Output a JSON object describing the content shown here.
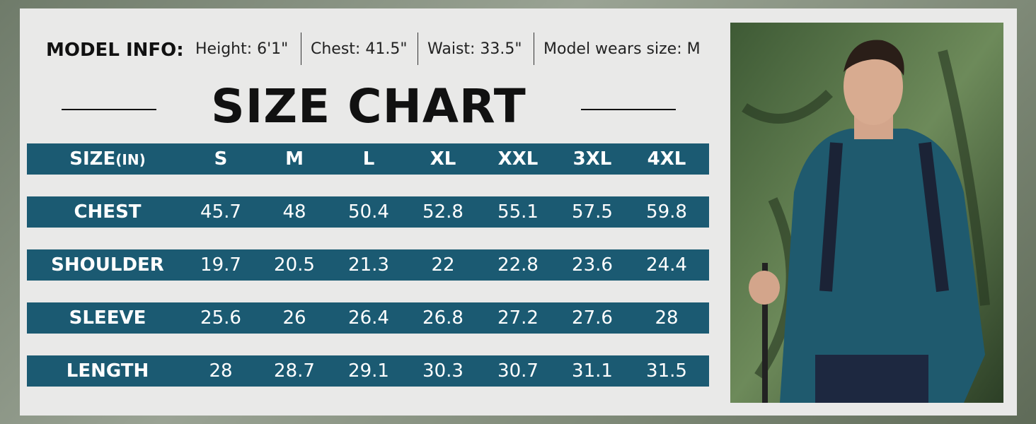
{
  "model_info": {
    "label": "MODEL INFO:",
    "items": [
      "Height: 6'1\"",
      "Chest: 41.5\"",
      "Waist: 33.5\"",
      "Model wears size: M"
    ]
  },
  "title": "SIZE CHART",
  "table": {
    "header": {
      "label": "SIZE",
      "unit": "(IN)",
      "sizes": [
        "S",
        "M",
        "L",
        "XL",
        "XXL",
        "3XL",
        "4XL"
      ]
    },
    "rows": [
      {
        "label": "CHEST",
        "values": [
          "45.7",
          "48",
          "50.4",
          "52.8",
          "55.1",
          "57.5",
          "59.8"
        ]
      },
      {
        "label": "SHOULDER",
        "values": [
          "19.7",
          "20.5",
          "21.3",
          "22",
          "22.8",
          "23.6",
          "24.4"
        ]
      },
      {
        "label": "SLEEVE",
        "values": [
          "25.6",
          "26",
          "26.4",
          "26.8",
          "27.2",
          "27.6",
          "28"
        ]
      },
      {
        "label": "LENGTH",
        "values": [
          "28",
          "28.7",
          "29.1",
          "30.3",
          "30.7",
          "31.1",
          "31.5"
        ]
      }
    ]
  }
}
